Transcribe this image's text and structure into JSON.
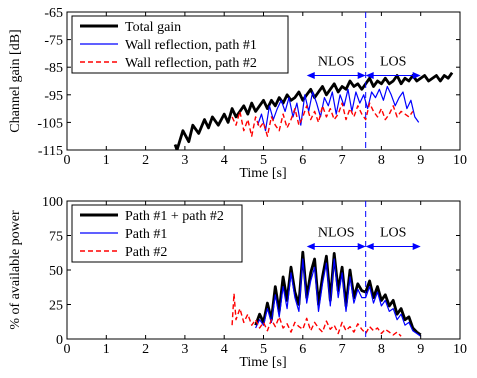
{
  "chart_data": [
    {
      "type": "line",
      "xlabel": "Time [s]",
      "ylabel": "Channel gain [dB]",
      "xlim": [
        0,
        10
      ],
      "ylim": [
        -115,
        -65
      ],
      "xticks": [
        "0",
        "1",
        "2",
        "3",
        "4",
        "5",
        "6",
        "7",
        "8",
        "9",
        "10"
      ],
      "yticks": [
        "-65",
        "-75",
        "-85",
        "-95",
        "-105",
        "-115"
      ],
      "ytick_values": [
        -65,
        -75,
        -85,
        -95,
        -105,
        -115
      ],
      "legend_placement": "top-left",
      "grid": false,
      "annotations": {
        "nlos_label": "NLOS",
        "los_label": "LOS",
        "divider_x": 7.6,
        "arrow_y": -88,
        "arrow_x_start": 6.1,
        "arrow_x_end": 9.0
      },
      "series": [
        {
          "name": "Total gain",
          "color": "#000000",
          "style": "solid-thick",
          "x": [
            2.75,
            2.8,
            2.95,
            3.1,
            3.2,
            3.35,
            3.5,
            3.6,
            3.7,
            3.85,
            4.0,
            4.1,
            4.2,
            4.3,
            4.4,
            4.5,
            4.6,
            4.7,
            4.8,
            4.9,
            5.0,
            5.1,
            5.2,
            5.3,
            5.4,
            5.5,
            5.6,
            5.7,
            5.8,
            5.9,
            6.0,
            6.1,
            6.2,
            6.3,
            6.4,
            6.5,
            6.6,
            6.7,
            6.8,
            6.9,
            7.0,
            7.1,
            7.2,
            7.3,
            7.4,
            7.5,
            7.6,
            7.7,
            7.8,
            7.9,
            8.0,
            8.1,
            8.2,
            8.3,
            8.4,
            8.5,
            8.6,
            8.7,
            8.8,
            8.9,
            9.0,
            9.1,
            9.2,
            9.3,
            9.4,
            9.5,
            9.6,
            9.7,
            9.8
          ],
          "values": [
            -113,
            -115,
            -108,
            -112,
            -106,
            -109,
            -104,
            -107,
            -103,
            -106,
            -102,
            -105,
            -100,
            -103,
            -101,
            -99,
            -102,
            -98,
            -101,
            -99,
            -97,
            -100,
            -97,
            -99,
            -96,
            -98,
            -95,
            -97,
            -96,
            -94,
            -97,
            -95,
            -93,
            -96,
            -94,
            -92,
            -95,
            -93,
            -91,
            -94,
            -92,
            -93,
            -90,
            -92,
            -91,
            -93,
            -91,
            -89,
            -92,
            -90,
            -91,
            -89,
            -91,
            -90,
            -88,
            -91,
            -89,
            -90,
            -88,
            -90,
            -89,
            -88,
            -90,
            -89,
            -88,
            -90,
            -88,
            -89,
            -87
          ]
        },
        {
          "name": "Wall reflection, path #1",
          "color": "#0000ff",
          "style": "solid",
          "x": [
            4.85,
            4.95,
            5.05,
            5.15,
            5.25,
            5.35,
            5.45,
            5.55,
            5.65,
            5.75,
            5.85,
            5.95,
            6.05,
            6.15,
            6.25,
            6.35,
            6.45,
            6.55,
            6.65,
            6.75,
            6.85,
            6.95,
            7.05,
            7.15,
            7.25,
            7.35,
            7.45,
            7.55,
            7.65,
            7.75,
            7.85,
            7.95,
            8.05,
            8.15,
            8.25,
            8.35,
            8.45,
            8.55,
            8.65,
            8.75,
            8.85,
            8.95
          ],
          "values": [
            -106,
            -102,
            -108,
            -99,
            -104,
            -100,
            -97,
            -101,
            -96,
            -103,
            -98,
            -106,
            -95,
            -101,
            -94,
            -98,
            -103,
            -96,
            -99,
            -94,
            -102,
            -95,
            -99,
            -93,
            -101,
            -94,
            -98,
            -95,
            -100,
            -94,
            -96,
            -93,
            -97,
            -92,
            -95,
            -99,
            -96,
            -94,
            -100,
            -97,
            -103,
            -105
          ]
        },
        {
          "name": "Wall reflection, path #2",
          "color": "#ff0000",
          "style": "dashed",
          "x": [
            4.2,
            4.3,
            4.4,
            4.5,
            4.6,
            4.7,
            4.8,
            4.9,
            5.0,
            5.1,
            5.2,
            5.3,
            5.4,
            5.5,
            5.6,
            5.7,
            5.8,
            5.9,
            6.0,
            6.1,
            6.2,
            6.3,
            6.4,
            6.5,
            6.6,
            6.7,
            6.8,
            6.9,
            7.0,
            7.1,
            7.2,
            7.3,
            7.4,
            7.5,
            7.6,
            7.7,
            7.8,
            7.9,
            8.0,
            8.1,
            8.2,
            8.3,
            8.4,
            8.5,
            8.6,
            8.7,
            8.8
          ],
          "values": [
            -103,
            -106,
            -101,
            -108,
            -104,
            -110,
            -103,
            -107,
            -105,
            -110,
            -103,
            -106,
            -108,
            -102,
            -107,
            -104,
            -100,
            -106,
            -103,
            -99,
            -104,
            -101,
            -105,
            -99,
            -103,
            -100,
            -104,
            -102,
            -98,
            -104,
            -100,
            -103,
            -99,
            -102,
            -104,
            -98,
            -101,
            -103,
            -100,
            -104,
            -102,
            -99,
            -103,
            -101,
            -102,
            -103,
            -101
          ]
        }
      ]
    },
    {
      "type": "line",
      "xlabel": "Time [s]",
      "ylabel": "% of available power",
      "xlim": [
        0,
        10
      ],
      "ylim": [
        0,
        100
      ],
      "xticks": [
        "0",
        "1",
        "2",
        "3",
        "4",
        "5",
        "6",
        "7",
        "8",
        "9",
        "10"
      ],
      "yticks": [
        "0",
        "25",
        "50",
        "75",
        "100"
      ],
      "ytick_values": [
        0,
        25,
        50,
        75,
        100
      ],
      "legend_placement": "top-left",
      "grid": false,
      "annotations": {
        "nlos_label": "NLOS",
        "los_label": "LOS",
        "divider_x": 7.6,
        "arrow_y": 67,
        "arrow_x_start": 6.1,
        "arrow_x_end": 9.0
      },
      "series": [
        {
          "name": "Path #1 + path #2",
          "color": "#000000",
          "style": "solid-thick",
          "x": [
            4.8,
            4.9,
            5.0,
            5.1,
            5.2,
            5.3,
            5.4,
            5.5,
            5.6,
            5.7,
            5.8,
            5.9,
            6.0,
            6.1,
            6.2,
            6.3,
            6.4,
            6.5,
            6.6,
            6.7,
            6.8,
            6.9,
            7.0,
            7.1,
            7.2,
            7.3,
            7.4,
            7.5,
            7.6,
            7.7,
            7.8,
            7.9,
            8.0,
            8.1,
            8.2,
            8.3,
            8.4,
            8.5,
            8.6,
            8.7,
            8.8,
            8.9,
            9.0
          ],
          "values": [
            10,
            18,
            12,
            26,
            14,
            38,
            20,
            45,
            28,
            52,
            34,
            25,
            63,
            30,
            48,
            58,
            25,
            45,
            60,
            28,
            62,
            35,
            52,
            24,
            50,
            30,
            40,
            35,
            34,
            42,
            30,
            38,
            28,
            32,
            24,
            28,
            18,
            22,
            14,
            16,
            8,
            5,
            3
          ]
        },
        {
          "name": "Path #1",
          "color": "#0000ff",
          "style": "solid",
          "x": [
            4.8,
            4.9,
            5.0,
            5.1,
            5.2,
            5.3,
            5.4,
            5.5,
            5.6,
            5.7,
            5.8,
            5.9,
            6.0,
            6.1,
            6.2,
            6.3,
            6.4,
            6.5,
            6.6,
            6.7,
            6.8,
            6.9,
            7.0,
            7.1,
            7.2,
            7.3,
            7.4,
            7.5,
            7.6,
            7.7,
            7.8,
            7.9,
            8.0,
            8.1,
            8.2,
            8.3,
            8.4,
            8.5,
            8.6,
            8.7,
            8.8,
            8.9,
            9.0
          ],
          "values": [
            8,
            14,
            10,
            22,
            12,
            32,
            16,
            38,
            22,
            48,
            30,
            20,
            58,
            26,
            42,
            52,
            20,
            40,
            55,
            24,
            58,
            30,
            48,
            20,
            45,
            26,
            36,
            30,
            30,
            38,
            26,
            34,
            24,
            28,
            20,
            22,
            14,
            18,
            10,
            12,
            6,
            4,
            2
          ]
        },
        {
          "name": "Path #2",
          "color": "#ff0000",
          "style": "dashed",
          "x": [
            4.2,
            4.25,
            4.3,
            4.4,
            4.5,
            4.6,
            4.7,
            4.8,
            4.9,
            5.0,
            5.1,
            5.2,
            5.3,
            5.4,
            5.5,
            5.6,
            5.7,
            5.8,
            5.9,
            6.0,
            6.1,
            6.2,
            6.3,
            6.4,
            6.5,
            6.6,
            6.7,
            6.8,
            6.9,
            7.0,
            7.1,
            7.2,
            7.3,
            7.4,
            7.5,
            7.6,
            7.7,
            7.8,
            7.9,
            8.0,
            8.1,
            8.2,
            8.3,
            8.4,
            8.5
          ],
          "values": [
            10,
            33,
            14,
            22,
            12,
            18,
            10,
            14,
            8,
            12,
            6,
            14,
            9,
            16,
            8,
            11,
            5,
            12,
            9,
            7,
            15,
            6,
            12,
            8,
            5,
            13,
            7,
            10,
            4,
            12,
            6,
            9,
            5,
            11,
            7,
            4,
            9,
            6,
            8,
            4,
            7,
            5,
            3,
            5,
            2
          ]
        }
      ]
    }
  ]
}
